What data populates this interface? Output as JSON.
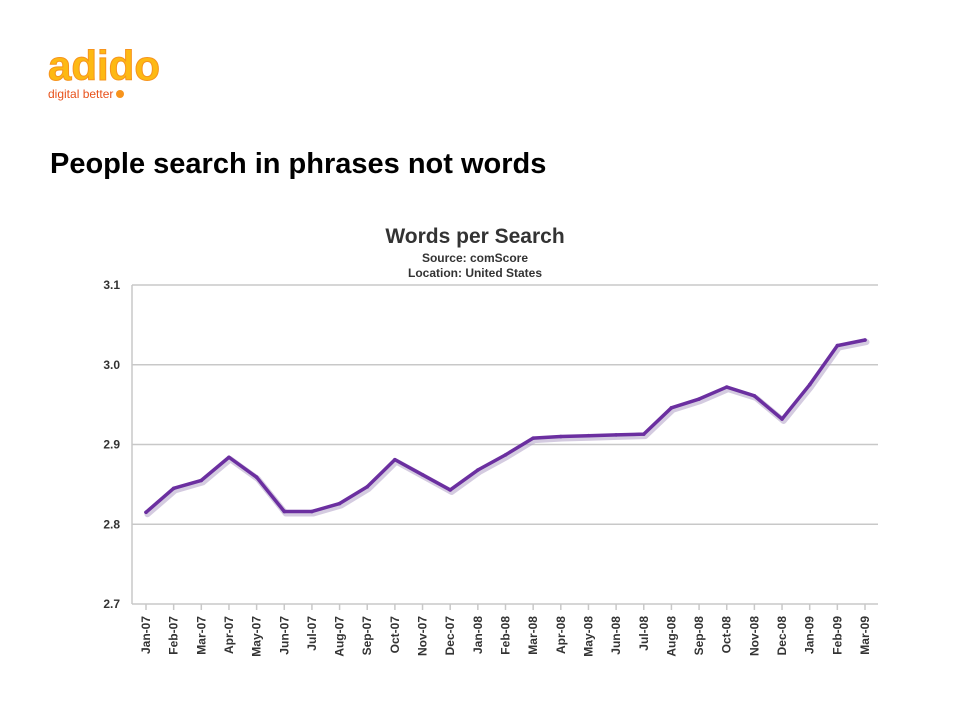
{
  "brand": {
    "logo_text": "adido",
    "tagline": "digital better",
    "colors": {
      "orange": "#F7941D",
      "yellow": "#FDB913",
      "text": "#E8511A"
    }
  },
  "slide": {
    "title": "People search in phrases not words"
  },
  "chart_data": {
    "type": "line",
    "title": "Words per Search",
    "subtitles": [
      "Source: comScore",
      "Location: United States"
    ],
    "xlabel": "",
    "ylabel": "",
    "ylim": [
      2.7,
      3.1
    ],
    "yticks": [
      2.7,
      2.8,
      2.9,
      3.0,
      3.1
    ],
    "ytick_labels": [
      "2.7",
      "2.8",
      "2.9",
      "3.0",
      "3.1"
    ],
    "grid": true,
    "line_color": "#6B2FA0",
    "categories": [
      "Jan-07",
      "Feb-07",
      "Mar-07",
      "Apr-07",
      "May-07",
      "Jun-07",
      "Jul-07",
      "Aug-07",
      "Sep-07",
      "Oct-07",
      "Nov-07",
      "Dec-07",
      "Jan-08",
      "Feb-08",
      "Mar-08",
      "Apr-08",
      "May-08",
      "Jun-08",
      "Jul-08",
      "Aug-08",
      "Sep-08",
      "Oct-08",
      "Nov-08",
      "Dec-08",
      "Jan-09",
      "Feb-09",
      "Mar-09"
    ],
    "series": [
      {
        "values": [
          2.815,
          2.845,
          2.855,
          2.884,
          2.859,
          2.816,
          2.816,
          2.826,
          2.847,
          2.881,
          2.862,
          2.843,
          2.868,
          2.887,
          2.908,
          2.91,
          2.911,
          2.912,
          2.913,
          2.946,
          2.957,
          2.972,
          2.961,
          2.932,
          2.975,
          3.024,
          3.031
        ]
      }
    ]
  }
}
